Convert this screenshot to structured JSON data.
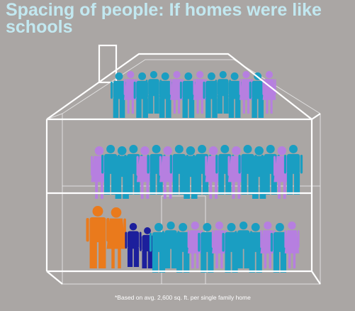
{
  "title": "Spacing of people: If homes were like schools",
  "footnote": "*Based on avg. 2,600 sq. ft. per single family home"
}
